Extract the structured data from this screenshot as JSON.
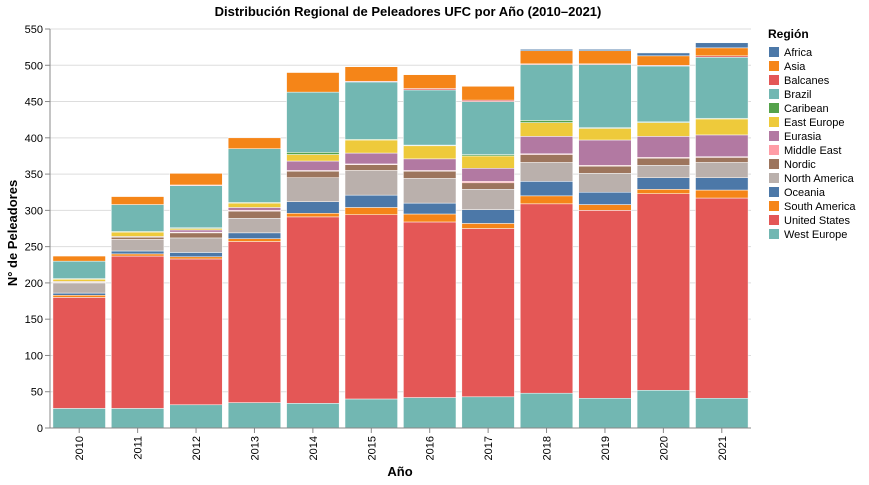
{
  "chart_data": {
    "type": "bar",
    "stacked": true,
    "title": "Distribución Regional de Peleadores UFC por Año (2010–2021)",
    "xlabel": "Año",
    "ylabel": "N° de Peleadores",
    "ylim": [
      0,
      550
    ],
    "yticks": [
      0,
      50,
      100,
      150,
      200,
      250,
      300,
      350,
      400,
      450,
      500,
      550
    ],
    "grid": true,
    "legend_title": "Región",
    "legend_position": "right",
    "categories": [
      "2010",
      "2011",
      "2012",
      "2013",
      "2014",
      "2015",
      "2016",
      "2017",
      "2018",
      "2019",
      "2020",
      "2021"
    ],
    "stack_order": [
      "West Europe",
      "United States",
      "South America",
      "Oceania",
      "North America",
      "Nordic",
      "Middle East",
      "Eurasia",
      "East Europe",
      "Caribean",
      "Brazil",
      "Balcanes",
      "Asia",
      "Africa"
    ],
    "series": [
      {
        "name": "Africa",
        "color": "#4c78a8",
        "values": [
          0,
          0,
          0,
          0,
          0,
          0,
          0,
          0,
          2,
          2,
          4,
          7
        ]
      },
      {
        "name": "Asia",
        "color": "#f58518",
        "values": [
          7,
          11,
          16,
          15,
          27,
          20,
          19,
          19,
          18,
          18,
          13,
          11
        ]
      },
      {
        "name": "Balcanes",
        "color": "#e45756",
        "values": [
          0,
          0,
          1,
          0,
          0,
          1,
          2,
          2,
          1,
          1,
          1,
          2
        ]
      },
      {
        "name": "Brazil",
        "color": "#72b7b2",
        "values": [
          24,
          37,
          58,
          74,
          83,
          79,
          76,
          73,
          77,
          87,
          77,
          84
        ]
      },
      {
        "name": "Caribean",
        "color": "#54a24b",
        "values": [
          1,
          1,
          1,
          1,
          3,
          1,
          1,
          2,
          3,
          1,
          1,
          1
        ]
      },
      {
        "name": "East Europe",
        "color": "#eeca3b",
        "values": [
          3,
          6,
          2,
          6,
          9,
          18,
          18,
          17,
          19,
          16,
          19,
          22
        ]
      },
      {
        "name": "Eurasia",
        "color": "#b279a2",
        "values": [
          1,
          1,
          3,
          4,
          13,
          15,
          16,
          18,
          24,
          35,
          29,
          30
        ]
      },
      {
        "name": "Middle East",
        "color": "#ff9da6",
        "values": [
          0,
          0,
          1,
          1,
          1,
          1,
          1,
          2,
          1,
          1,
          1,
          1
        ]
      },
      {
        "name": "Nordic",
        "color": "#9d755d",
        "values": [
          1,
          3,
          7,
          10,
          9,
          8,
          10,
          9,
          11,
          10,
          10,
          7
        ]
      },
      {
        "name": "North America",
        "color": "#bab0ac",
        "values": [
          14,
          16,
          20,
          20,
          33,
          34,
          34,
          28,
          26,
          26,
          17,
          21
        ]
      },
      {
        "name": "Oceania",
        "color": "#4c78a8",
        "values": [
          3,
          4,
          6,
          8,
          16,
          17,
          15,
          19,
          20,
          17,
          16,
          17
        ]
      },
      {
        "name": "South America",
        "color": "#f58518",
        "values": [
          3,
          3,
          3,
          4,
          5,
          10,
          11,
          7,
          11,
          8,
          6,
          11
        ]
      },
      {
        "name": "United States",
        "color": "#e45756",
        "values": [
          153,
          210,
          201,
          222,
          257,
          254,
          242,
          232,
          261,
          259,
          271,
          276
        ]
      },
      {
        "name": "West Europe",
        "color": "#72b7b2",
        "values": [
          27,
          27,
          32,
          35,
          34,
          40,
          42,
          43,
          48,
          41,
          52,
          41
        ]
      }
    ]
  }
}
